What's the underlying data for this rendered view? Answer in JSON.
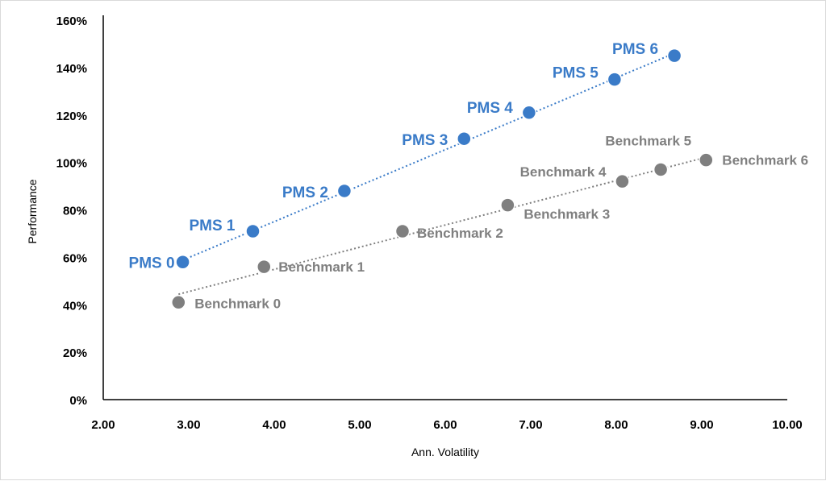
{
  "chart_data": {
    "type": "scatter",
    "title": "",
    "xlabel": "Ann. Volatility",
    "ylabel": "Performance",
    "xlim": [
      2.0,
      10.0
    ],
    "ylim": [
      0,
      160
    ],
    "x_ticks": [
      "2.00",
      "3.00",
      "4.00",
      "5.00",
      "6.00",
      "7.00",
      "8.00",
      "9.00",
      "10.00"
    ],
    "y_ticks": [
      "0%",
      "20%",
      "40%",
      "60%",
      "80%",
      "100%",
      "120%",
      "140%",
      "160%"
    ],
    "grid": false,
    "legend": "none",
    "series": [
      {
        "color": "#3a7bc8",
        "trendline": "linear",
        "points": [
          {
            "label": "PMS 0",
            "x": 2.93,
            "y": 58
          },
          {
            "label": "PMS 1",
            "x": 3.75,
            "y": 71
          },
          {
            "label": "PMS 2",
            "x": 4.82,
            "y": 88
          },
          {
            "label": "PMS 3",
            "x": 6.22,
            "y": 110
          },
          {
            "label": "PMS 4",
            "x": 6.98,
            "y": 121
          },
          {
            "label": "PMS 5",
            "x": 7.98,
            "y": 135
          },
          {
            "label": "PMS 6",
            "x": 8.68,
            "y": 145
          }
        ]
      },
      {
        "color": "#7f7f7f",
        "trendline": "linear",
        "points": [
          {
            "label": "Benchmark 0",
            "x": 2.88,
            "y": 41
          },
          {
            "label": "Benchmark 1",
            "x": 3.88,
            "y": 56
          },
          {
            "label": "Benchmark 2",
            "x": 5.5,
            "y": 71
          },
          {
            "label": "Benchmark 3",
            "x": 6.73,
            "y": 82
          },
          {
            "label": "Benchmark 4",
            "x": 8.07,
            "y": 92
          },
          {
            "label": "Benchmark 5",
            "x": 8.52,
            "y": 97
          },
          {
            "label": "Benchmark 6",
            "x": 9.05,
            "y": 101
          }
        ]
      }
    ]
  }
}
